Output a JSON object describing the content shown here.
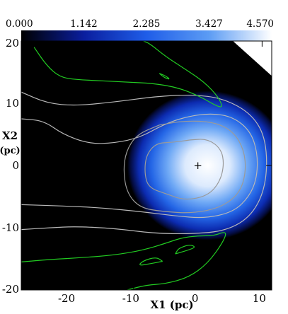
{
  "chart_data": {
    "type": "heatmap",
    "title": "",
    "xlabel": "X1 (pc)",
    "ylabel": "X2",
    "ylabel_unit": "(pc)",
    "xlim": [
      -27.5,
      11.5
    ],
    "ylim": [
      -20,
      20
    ],
    "x_ticks": [
      -20,
      -10,
      0,
      10
    ],
    "x_tick_labels": [
      "-20",
      "-10",
      "0",
      "10"
    ],
    "y_ticks": [
      20,
      10,
      0,
      -10,
      -20
    ],
    "y_tick_labels": [
      "20",
      "10",
      "0",
      "-10",
      "-20"
    ],
    "colorbar": {
      "min": 0.0,
      "max": 4.57,
      "tick_values": [
        0.0,
        1.142,
        2.285,
        3.427,
        4.57
      ],
      "tick_labels": [
        "0.000",
        "1.142",
        "2.285",
        "3.427",
        "4.570"
      ],
      "colors": [
        "#000000",
        "#0a1e9e",
        "#1f5de8",
        "#5c9cf4",
        "#ffffff"
      ]
    },
    "source_marker": {
      "x": 0,
      "y": 0,
      "symbol": "+"
    },
    "field": {
      "peak": 4.57,
      "center_x": 1.5,
      "center_y": 0,
      "radius_x": 12.5,
      "radius_y": 12.0
    },
    "contours": [
      {
        "color": "#b8b8b8",
        "points": [
          [
            -27.5,
            7.5
          ],
          [
            -24,
            7.2
          ],
          [
            -21,
            5.0
          ],
          [
            -17,
            3.5
          ],
          [
            -13,
            3.6
          ],
          [
            -9,
            4.5
          ],
          [
            -5.5,
            6.5
          ],
          [
            -2,
            7.8
          ],
          [
            2,
            8.4
          ],
          [
            5.5,
            7.8
          ],
          [
            8.2,
            5.5
          ],
          [
            9.3,
            2
          ],
          [
            9.2,
            -2
          ],
          [
            8.0,
            -5
          ],
          [
            5.5,
            -7.5
          ],
          [
            1,
            -8.5
          ],
          [
            -3.5,
            -8.1
          ],
          [
            -9,
            -7.4
          ],
          [
            -15,
            -6.8
          ],
          [
            -21,
            -6.5
          ],
          [
            -27.5,
            -6.3
          ]
        ]
      },
      {
        "color": "#b8b8b8",
        "points": [
          [
            -27.5,
            11.8
          ],
          [
            -23.5,
            10.0
          ],
          [
            -19,
            9.6
          ],
          [
            -13,
            10.2
          ],
          [
            -6.5,
            11.1
          ],
          [
            -1,
            11.4
          ],
          [
            4,
            10.8
          ],
          [
            8.5,
            8.2
          ],
          [
            10.7,
            4
          ],
          [
            10.7,
            -3
          ],
          [
            8.5,
            -8.0
          ],
          [
            4.5,
            -10.5
          ],
          [
            -1,
            -11.0
          ],
          [
            -7,
            -10.9
          ],
          [
            -13,
            -10.1
          ],
          [
            -19,
            -9.8
          ],
          [
            -23,
            -10.0
          ],
          [
            -27.5,
            -10.3
          ]
        ]
      },
      {
        "color": "#9a9a9a",
        "points": [
          [
            -1.2,
            4.1
          ],
          [
            -4.0,
            3.7
          ],
          [
            -6.5,
            3.6
          ],
          [
            -8.1,
            1.6
          ],
          [
            -8.3,
            -1.5
          ],
          [
            -7.6,
            -3.6
          ],
          [
            -4.8,
            -4.6
          ],
          [
            -2.0,
            -5.6
          ],
          [
            1.5,
            -4.9
          ],
          [
            3.4,
            -2.7
          ],
          [
            4.1,
            0.2
          ],
          [
            3.6,
            2.7
          ],
          [
            1.5,
            4.3
          ],
          [
            -1.2,
            4.1
          ]
        ]
      },
      {
        "color": "#9a9a9a",
        "points": [
          [
            -6.0,
            6.5
          ],
          [
            -2.0,
            7.2
          ],
          [
            2.5,
            7.0
          ],
          [
            5.5,
            5.5
          ],
          [
            7.2,
            2.5
          ],
          [
            7.5,
            -1.0
          ],
          [
            6.5,
            -4.5
          ],
          [
            3.5,
            -6.8
          ],
          [
            -1.0,
            -7.7
          ],
          [
            -5.5,
            -7.4
          ],
          [
            -9.0,
            -6.8
          ],
          [
            -11.0,
            -4.5
          ],
          [
            -11.6,
            -1.0
          ],
          [
            -11.2,
            2.3
          ],
          [
            -9.5,
            5.0
          ],
          [
            -6.0,
            6.5
          ]
        ]
      },
      {
        "color": "#22cc22",
        "points": [
          [
            -25.5,
            19.0
          ],
          [
            -23.5,
            16.0
          ],
          [
            -21.5,
            14.2
          ],
          [
            -19,
            13.8
          ],
          [
            -15,
            13.6
          ],
          [
            -11,
            13.4
          ],
          [
            -7,
            13.2
          ],
          [
            -3,
            12.5
          ],
          [
            0.5,
            11.0
          ],
          [
            2.8,
            9.6
          ],
          [
            3.9,
            9.3
          ],
          [
            3.2,
            11.0
          ],
          [
            1.0,
            13.4
          ],
          [
            -2.0,
            15.5
          ],
          [
            -5.0,
            17.5
          ],
          [
            -7.5,
            19.6
          ],
          [
            -8.5,
            20.0
          ]
        ]
      },
      {
        "color": "#22cc22",
        "points": [
          [
            -6.0,
            14.8
          ],
          [
            -5.0,
            14.4
          ],
          [
            -4.3,
            13.8
          ],
          [
            -5.2,
            14.1
          ],
          [
            -6.0,
            14.8
          ]
        ]
      },
      {
        "color": "#22cc22",
        "points": [
          [
            -27.5,
            -15.5
          ],
          [
            -23,
            -15.1
          ],
          [
            -18,
            -14.8
          ],
          [
            -13,
            -14.4
          ],
          [
            -8.5,
            -13.6
          ],
          [
            -5.0,
            -12.5
          ],
          [
            -2.5,
            -11.6
          ],
          [
            0.0,
            -11.3
          ],
          [
            2.5,
            -11.3
          ],
          [
            4.5,
            -10.5
          ],
          [
            4.0,
            -12.2
          ],
          [
            1.5,
            -15.8
          ],
          [
            -1.5,
            -18.0
          ],
          [
            -5.0,
            -19.0
          ],
          [
            -8.0,
            -19.2
          ],
          [
            -11.0,
            -20.0
          ]
        ]
      },
      {
        "color": "#22cc22",
        "points": [
          [
            -5.5,
            -15.4
          ],
          [
            -7.5,
            -15.8
          ],
          [
            -9.3,
            -16.1
          ],
          [
            -8.5,
            -15.3
          ],
          [
            -6.5,
            -14.7
          ],
          [
            -5.5,
            -15.4
          ]
        ]
      },
      {
        "color": "#22cc22",
        "points": [
          [
            -3.5,
            -14.2
          ],
          [
            -1.5,
            -13.6
          ],
          [
            -0.3,
            -13.1
          ],
          [
            -1.3,
            -12.7
          ],
          [
            -3.0,
            -13.3
          ],
          [
            -3.5,
            -14.2
          ]
        ]
      }
    ]
  }
}
